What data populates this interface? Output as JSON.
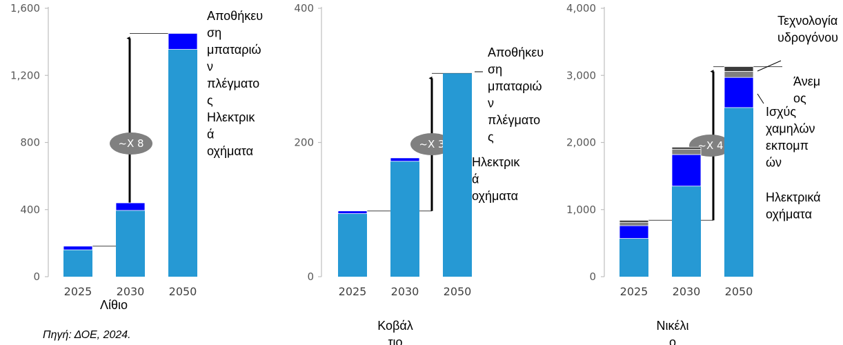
{
  "source": "Πηγή: ΔΟΕ, 2024.",
  "colors": {
    "ev": "#2699D4",
    "grid_storage": "#0000FF",
    "low_emission": "#0000FF",
    "wind": "#7F7F7F",
    "hydrogen": "#3A3A3A",
    "axis": "#BFBFBF",
    "bubble": "#808080"
  },
  "chart_data": [
    {
      "type": "bar",
      "title": "Λίθιο",
      "categories": [
        "2025",
        "2030",
        "2050"
      ],
      "ylim": [
        0,
        1600
      ],
      "yticks": [
        "0",
        "400",
        "800",
        "1,200",
        "1,600"
      ],
      "multiplier": "~X 8",
      "series": [
        {
          "name": "Ηλεκτρικά οχήματα",
          "values": [
            160,
            395,
            1355
          ]
        },
        {
          "name": "Αποθήκευση μπαταριών πλέγματος",
          "values": [
            22,
            45,
            95
          ]
        }
      ],
      "annotation_labels": [
        "Αποθήκευ",
        "ση",
        "μπαταριώ",
        "ν",
        "πλέγματο",
        "ς",
        "Ηλεκτρικ",
        "ά",
        "οχήματα"
      ]
    },
    {
      "type": "bar",
      "title": "Κοβάλτιο",
      "title_lines": [
        "Κοβάλ",
        "τιο"
      ],
      "categories": [
        "2025",
        "2030",
        "2050"
      ],
      "ylim": [
        0,
        400
      ],
      "yticks": [
        "0",
        "200",
        "400"
      ],
      "multiplier": "~X 3",
      "series": [
        {
          "name": "Ηλεκτρικά οχήματα",
          "values": [
            94,
            172,
            303
          ]
        },
        {
          "name": "Αποθήκευση μπαταριών πλέγματος",
          "values": [
            4,
            5,
            0
          ]
        }
      ],
      "annotation_labels": [
        "Αποθήκευ",
        "ση",
        "μπαταριώ",
        "ν",
        "πλέγματο",
        "ς",
        "Ηλεκτρικ",
        "ά",
        "οχήματα"
      ]
    },
    {
      "type": "bar",
      "title": "Νικέλιο",
      "title_lines": [
        "Νικέλι",
        "ο"
      ],
      "categories": [
        "2025",
        "2030",
        "2050"
      ],
      "ylim": [
        0,
        4000
      ],
      "yticks": [
        "0",
        "1,000",
        "2,000",
        "3,000",
        "4,000"
      ],
      "multiplier": "~X 4",
      "series": [
        {
          "name": "Ηλεκτρικά οχήματα",
          "values": [
            570,
            1350,
            2520
          ]
        },
        {
          "name": "Ισχύς χαμηλών εκπομπών",
          "values": [
            190,
            470,
            450
          ]
        },
        {
          "name": "Άνεμος",
          "values": [
            50,
            80,
            90
          ]
        },
        {
          "name": "Τεχνολογία υδρογόνου",
          "values": [
            30,
            30,
            70
          ]
        }
      ],
      "annotation_labels": [
        "Τεχνολογία",
        "υδρογόνου",
        "Άνεμ",
        "ος",
        "Ισχύς",
        "χαμηλών",
        "εκπομπ",
        "ών",
        "Ηλεκτρικά",
        "οχήματα"
      ]
    }
  ]
}
